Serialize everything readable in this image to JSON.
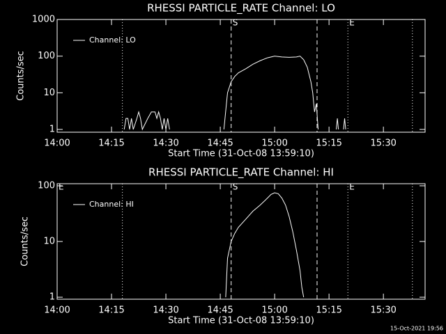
{
  "chart_data": [
    {
      "type": "line",
      "title": "RHESSI PARTICLE_RATE Channel: LO",
      "x_label": "Start Time (31-Oct-08 13:59:10)",
      "y_label": "Counts/sec",
      "log_y": true,
      "xlim": [
        0,
        101.5
      ],
      "ylim": [
        0.84,
        1000
      ],
      "xticks": [
        {
          "value": 0,
          "label": "14:00"
        },
        {
          "value": 15,
          "label": "14:15"
        },
        {
          "value": 30,
          "label": "14:30"
        },
        {
          "value": 45,
          "label": "14:45"
        },
        {
          "value": 60,
          "label": "15:00"
        },
        {
          "value": 75,
          "label": "15:15"
        },
        {
          "value": 90,
          "label": "15:30"
        }
      ],
      "yticks": [
        1,
        10,
        100,
        1000
      ],
      "markers": [
        {
          "x": 18,
          "style": "dotted"
        },
        {
          "x": 48,
          "style": "dashed",
          "label": "S"
        },
        {
          "x": 71.7,
          "style": "dashed"
        },
        {
          "x": 80.2,
          "style": "dotted",
          "label": "E"
        },
        {
          "x": 98,
          "style": "dotted"
        }
      ],
      "series": [
        {
          "name": "Channel: LO",
          "color": "#ffffff",
          "x": [
            18.5,
            19,
            19.5,
            20,
            20.5,
            21,
            22,
            22.5,
            23,
            23.5,
            25,
            26,
            27,
            27.5,
            28,
            28.5,
            29,
            29.5,
            30,
            30.5,
            31,
            38,
            46,
            47,
            48,
            49,
            50,
            52,
            54,
            56,
            58,
            60,
            62,
            64,
            66,
            67,
            68,
            69,
            70,
            70.5,
            71,
            71.5,
            72,
            75,
            77,
            77.3,
            77.6,
            78,
            79,
            79.3,
            79.6
          ],
          "values": [
            1,
            2,
            2,
            1,
            2,
            1,
            2,
            3,
            2,
            1,
            2,
            3,
            3,
            2,
            3,
            2,
            1,
            2,
            1,
            2,
            1,
            null,
            1,
            10,
            20,
            28,
            35,
            45,
            60,
            75,
            90,
            100,
            95,
            93,
            95,
            100,
            80,
            50,
            20,
            10,
            3,
            5,
            1,
            null,
            1,
            2,
            1,
            null,
            1,
            2,
            1
          ]
        }
      ]
    },
    {
      "type": "line",
      "title": "RHESSI PARTICLE_RATE Channel: HI",
      "x_label": "Start Time (31-Oct-08 13:59:10)",
      "y_label": "Counts/sec",
      "log_y": true,
      "xlim": [
        0,
        101.5
      ],
      "ylim": [
        0.92,
        109
      ],
      "xticks": [
        {
          "value": 0,
          "label": "14:00"
        },
        {
          "value": 15,
          "label": "14:15"
        },
        {
          "value": 30,
          "label": "14:30"
        },
        {
          "value": 45,
          "label": "14:45"
        },
        {
          "value": 60,
          "label": "15:00"
        },
        {
          "value": 75,
          "label": "15:15"
        },
        {
          "value": 90,
          "label": "15:30"
        }
      ],
      "yticks": [
        1,
        10,
        100
      ],
      "markers": [
        {
          "x": 0,
          "style": "dotted",
          "label": "E"
        },
        {
          "x": 18,
          "style": "dotted"
        },
        {
          "x": 48,
          "style": "dashed",
          "label": "S"
        },
        {
          "x": 71.7,
          "style": "dashed"
        },
        {
          "x": 80.2,
          "style": "dotted",
          "label": "E"
        },
        {
          "x": 98,
          "style": "dotted"
        }
      ],
      "series": [
        {
          "name": "Channel: HI",
          "color": "#ffffff",
          "x": [
            46.5,
            47,
            48,
            49,
            50,
            52,
            54,
            56,
            58,
            59,
            60,
            61,
            62,
            63,
            64,
            65,
            66,
            67,
            67.5,
            68
          ],
          "values": [
            1,
            5,
            10,
            14,
            18,
            25,
            35,
            45,
            60,
            70,
            75,
            72,
            60,
            45,
            28,
            15,
            7,
            3,
            1.5,
            1
          ]
        }
      ]
    }
  ],
  "timestamp": "15-Oct-2021 19:56"
}
